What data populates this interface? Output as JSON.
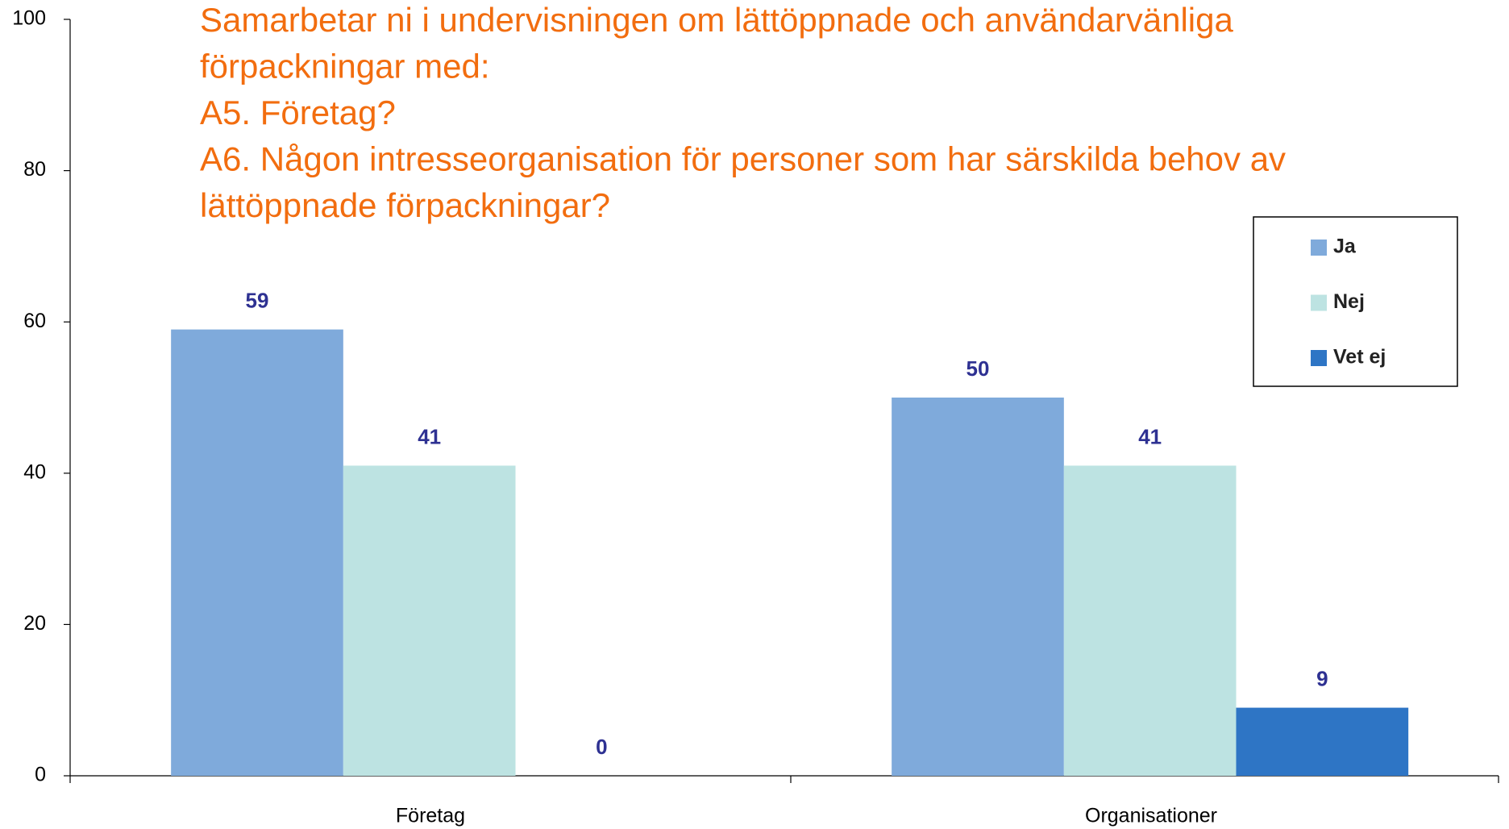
{
  "chart_data": {
    "type": "bar",
    "title_lines": [
      "Samarbetar ni i undervisningen om lättöppnade och användarvänliga",
      "förpackningar med:",
      "A5. Företag?",
      "A6. Någon intresseorganisation för personer som har särskilda behov av",
      "lättöppnade förpackningar?"
    ],
    "categories": [
      "Företag",
      "Organisationer"
    ],
    "series": [
      {
        "name": "Ja",
        "color": "#7faadb",
        "values": [
          59,
          50
        ]
      },
      {
        "name": "Nej",
        "color": "#bde3e2",
        "values": [
          41,
          41
        ]
      },
      {
        "name": "Vet ej",
        "color": "#2e75c5",
        "values": [
          0,
          9
        ]
      }
    ],
    "ylim": [
      0,
      100
    ],
    "yticks": [
      0,
      20,
      40,
      60,
      80,
      100
    ],
    "grid": false,
    "legend": "upper right"
  }
}
